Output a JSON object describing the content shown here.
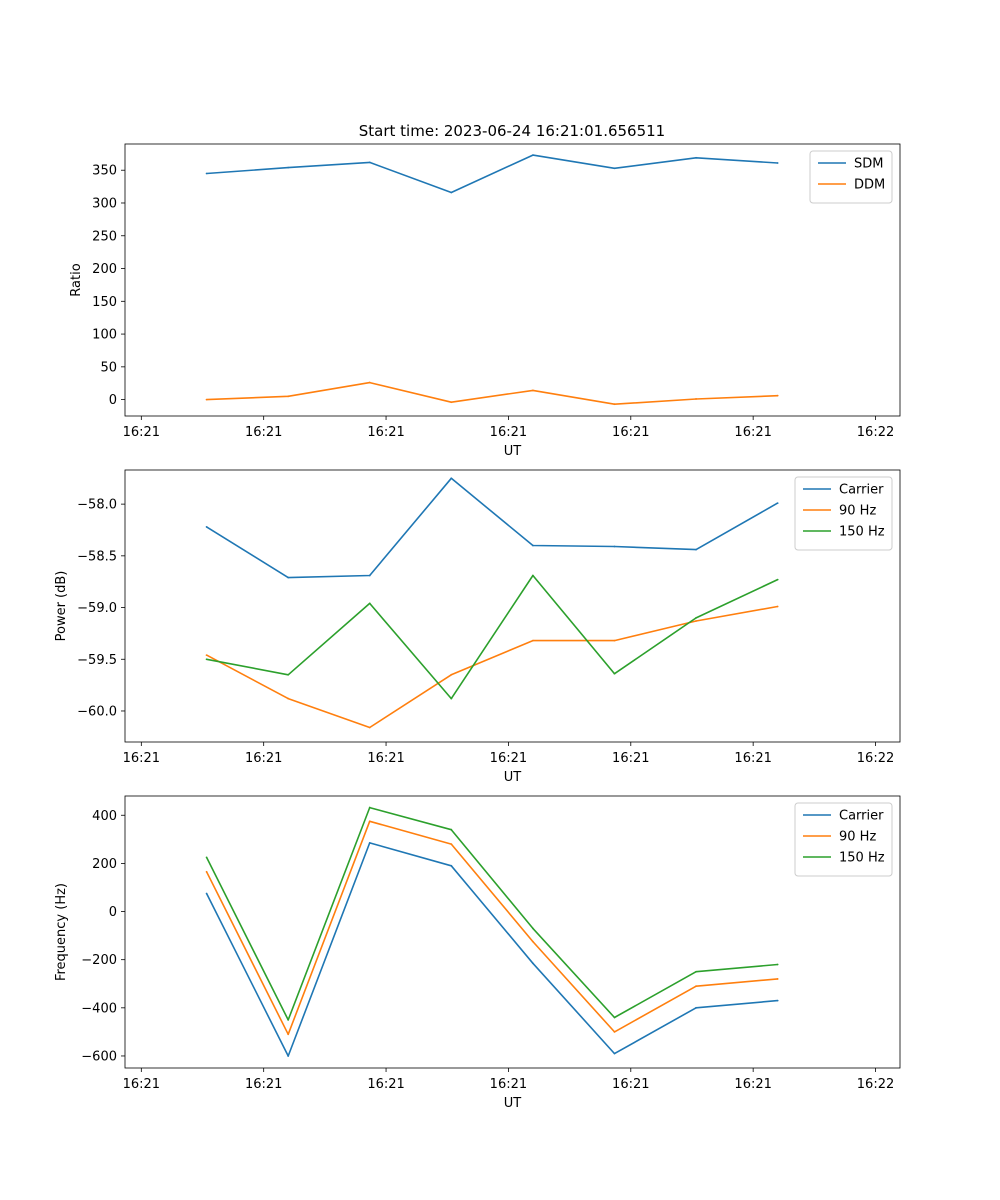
{
  "figure_title": "Start time: 2023-06-24 16:21:01.656511",
  "chart_data": [
    {
      "type": "line",
      "xlabel": "UT",
      "ylabel": "Ratio",
      "xlim": [
        -0.5,
        9.0
      ],
      "x": [
        0.5,
        1.5,
        2.5,
        3.5,
        4.5,
        5.5,
        6.5,
        7.5
      ],
      "x_tick_values": [
        -0.3,
        1.2,
        2.7,
        4.2,
        5.7,
        7.2,
        8.7
      ],
      "x_tick_labels": [
        "16:21",
        "16:21",
        "16:21",
        "16:21",
        "16:21",
        "16:21",
        "16:22"
      ],
      "ylim": [
        -25,
        390
      ],
      "yticks": [
        0,
        50,
        100,
        150,
        200,
        250,
        300,
        350
      ],
      "y_tick_labels": [
        "0",
        "50",
        "100",
        "150",
        "200",
        "250",
        "300",
        "350"
      ],
      "legend_position": "top-right",
      "series": [
        {
          "name": "SDM",
          "color": "#1f77b4",
          "values": [
            345,
            354,
            362,
            316,
            373,
            353,
            369,
            361
          ]
        },
        {
          "name": "DDM",
          "color": "#ff7f0e",
          "values": [
            0,
            5,
            26,
            -4,
            14,
            -7,
            1,
            6
          ]
        }
      ]
    },
    {
      "type": "line",
      "xlabel": "UT",
      "ylabel": "Power (dB)",
      "xlim": [
        -0.5,
        9.0
      ],
      "x": [
        0.5,
        1.5,
        2.5,
        3.5,
        4.5,
        5.5,
        6.5,
        7.5
      ],
      "x_tick_values": [
        -0.3,
        1.2,
        2.7,
        4.2,
        5.7,
        7.2,
        8.7
      ],
      "x_tick_labels": [
        "16:21",
        "16:21",
        "16:21",
        "16:21",
        "16:21",
        "16:21",
        "16:22"
      ],
      "ylim": [
        -60.3,
        -57.67
      ],
      "yticks": [
        -60.0,
        -59.5,
        -59.0,
        -58.5,
        -58.0
      ],
      "y_tick_labels": [
        "−60.0",
        "−59.5",
        "−59.0",
        "−58.5",
        "−58.0"
      ],
      "legend_position": "top-right",
      "series": [
        {
          "name": "Carrier",
          "color": "#1f77b4",
          "values": [
            -58.22,
            -58.71,
            -58.69,
            -57.75,
            -58.4,
            -58.41,
            -58.44,
            -57.99
          ]
        },
        {
          "name": "90 Hz",
          "color": "#ff7f0e",
          "values": [
            -59.46,
            -59.88,
            -60.16,
            -59.65,
            -59.32,
            -59.32,
            -59.13,
            -58.99
          ]
        },
        {
          "name": "150 Hz",
          "color": "#2ca02c",
          "values": [
            -59.5,
            -59.65,
            -58.96,
            -59.88,
            -58.69,
            -59.64,
            -59.1,
            -58.73
          ]
        }
      ]
    },
    {
      "type": "line",
      "xlabel": "UT",
      "ylabel": "Frequency (Hz)",
      "xlim": [
        -0.5,
        9.0
      ],
      "x": [
        0.5,
        1.5,
        2.5,
        3.5,
        4.5,
        5.5,
        6.5,
        7.5
      ],
      "x_tick_values": [
        -0.3,
        1.2,
        2.7,
        4.2,
        5.7,
        7.2,
        8.7
      ],
      "x_tick_labels": [
        "16:21",
        "16:21",
        "16:21",
        "16:21",
        "16:21",
        "16:21",
        "16:22"
      ],
      "ylim": [
        -650,
        480
      ],
      "yticks": [
        -600,
        -400,
        -200,
        0,
        200,
        400
      ],
      "y_tick_labels": [
        "−600",
        "−400",
        "−200",
        "0",
        "200",
        "400"
      ],
      "legend_position": "top-right",
      "series": [
        {
          "name": "Carrier",
          "color": "#1f77b4",
          "values": [
            75,
            -600,
            285,
            190,
            -215,
            -590,
            -400,
            -370
          ]
        },
        {
          "name": "90 Hz",
          "color": "#ff7f0e",
          "values": [
            165,
            -510,
            375,
            280,
            -125,
            -500,
            -310,
            -280
          ]
        },
        {
          "name": "150 Hz",
          "color": "#2ca02c",
          "values": [
            225,
            -450,
            432,
            340,
            -70,
            -440,
            -250,
            -220
          ]
        }
      ]
    }
  ]
}
